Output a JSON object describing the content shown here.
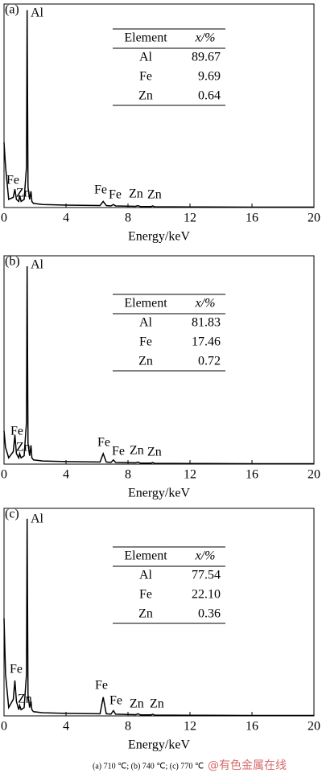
{
  "chart_data": [
    {
      "type": "line",
      "panel": "(a)",
      "xlabel": "Energy/keV",
      "xlim": [
        0,
        20
      ],
      "xticks": [
        0,
        4,
        8,
        12,
        16,
        20
      ],
      "ylim": [
        0,
        100
      ],
      "series": [
        {
          "color": "#000000",
          "x": [
            0,
            0.1,
            0.3,
            0.6,
            0.7,
            0.8,
            0.95,
            1.01,
            1.1,
            1.3,
            1.45,
            1.49,
            1.55,
            1.65,
            1.74,
            1.8,
            1.9,
            2.5,
            4,
            6.2,
            6.4,
            6.6,
            6.9,
            7.06,
            7.2,
            8.5,
            8.63,
            8.8,
            9.5,
            9.6,
            9.7,
            12,
            16,
            20
          ],
          "values": [
            32,
            20,
            4,
            5,
            9,
            4,
            3,
            6,
            3,
            4,
            20,
            97,
            10,
            4,
            8,
            3,
            2,
            1.5,
            1.2,
            1,
            3,
            1,
            0.8,
            1.5,
            0.8,
            0.6,
            0.9,
            0.5,
            0.5,
            0.8,
            0.4,
            0.3,
            0.2,
            0.2
          ]
        }
      ],
      "annotations": [
        "Al",
        "Fe",
        "Zn",
        "Fe",
        "Fe",
        "Zn",
        "Zn"
      ],
      "table": {
        "header": [
          "Element",
          "x/%"
        ],
        "rows": [
          [
            "Al",
            89.67
          ],
          [
            "Fe",
            9.69
          ],
          [
            "Zn",
            0.64
          ]
        ]
      }
    },
    {
      "type": "line",
      "panel": "(b)",
      "xlabel": "Energy/keV",
      "xlim": [
        0,
        20
      ],
      "xticks": [
        0,
        4,
        8,
        12,
        16,
        20
      ],
      "ylim": [
        0,
        100
      ],
      "series": [
        {
          "color": "#000000",
          "x": [
            0,
            0.1,
            0.3,
            0.6,
            0.7,
            0.8,
            0.95,
            1.01,
            1.1,
            1.3,
            1.45,
            1.49,
            1.55,
            1.65,
            1.74,
            1.8,
            1.9,
            2.5,
            4,
            6.2,
            6.4,
            6.6,
            6.9,
            7.06,
            7.2,
            8.5,
            8.63,
            8.8,
            9.5,
            9.6,
            9.7,
            12,
            16,
            20
          ],
          "values": [
            16,
            8,
            3,
            6,
            14,
            5,
            3,
            5,
            3,
            4,
            20,
            95,
            10,
            4,
            9,
            3,
            2,
            1.5,
            1.2,
            1,
            5,
            1,
            0.8,
            2,
            0.8,
            0.6,
            1,
            0.5,
            0.5,
            0.8,
            0.4,
            0.3,
            0.2,
            0.2
          ]
        }
      ],
      "annotations": [
        "Al",
        "Fe",
        "Zn",
        "Fe",
        "Fe",
        "Zn",
        "Zn"
      ],
      "table": {
        "header": [
          "Element",
          "x/%"
        ],
        "rows": [
          [
            "Al",
            81.83
          ],
          [
            "Fe",
            17.46
          ],
          [
            "Zn",
            0.72
          ]
        ]
      }
    },
    {
      "type": "line",
      "panel": "(c)",
      "xlabel": "Energy/keV",
      "xlim": [
        0,
        20
      ],
      "xticks": [
        0,
        4,
        8,
        12,
        16,
        20
      ],
      "ylim": [
        0,
        100
      ],
      "series": [
        {
          "color": "#000000",
          "x": [
            0,
            0.1,
            0.3,
            0.6,
            0.7,
            0.8,
            0.95,
            1.01,
            1.1,
            1.3,
            1.45,
            1.49,
            1.55,
            1.65,
            1.74,
            1.8,
            1.9,
            2.5,
            4,
            6.2,
            6.4,
            6.6,
            6.9,
            7.06,
            7.2,
            8.5,
            8.63,
            8.8,
            9.5,
            9.6,
            9.7,
            12,
            16,
            20
          ],
          "values": [
            47,
            20,
            4,
            8,
            17,
            7,
            3,
            5,
            3,
            4,
            20,
            95,
            10,
            4,
            7,
            3,
            2,
            1.5,
            1.2,
            1,
            9,
            1,
            0.8,
            2.5,
            0.8,
            0.6,
            1,
            0.5,
            0.5,
            0.8,
            0.4,
            0.3,
            0.2,
            0.2
          ]
        }
      ],
      "annotations": [
        "Al",
        "Fe",
        "Zn",
        "Fe",
        "Fe",
        "Zn",
        "Zn"
      ],
      "table": {
        "header": [
          "Element",
          "x/%"
        ],
        "rows": [
          [
            "Al",
            77.54
          ],
          [
            "Fe",
            {
              "value": 22.1,
              "label": "22.10"
            }
          ],
          [
            "Zn",
            0.36
          ]
        ]
      }
    }
  ],
  "caption": "(a)   710  ℃; (b) 740 ℃; (c) 770 ℃",
  "watermark": "@有色金属在线"
}
